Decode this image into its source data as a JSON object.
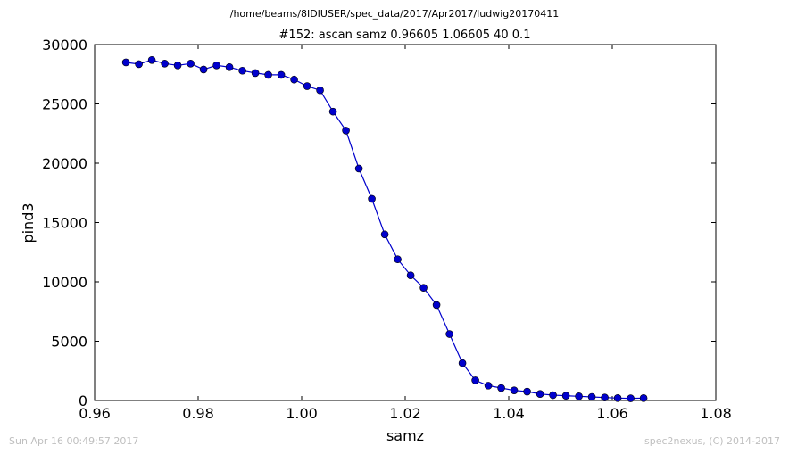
{
  "header": {
    "path": "/home/beams/8IDIUSER/spec_data/2017/Apr2017/ludwig20170411"
  },
  "footer": {
    "timestamp": "Sun Apr 16 00:49:57 2017",
    "credit": "spec2nexus, (C) 2014-2017"
  },
  "chart_data": {
    "type": "line",
    "title": "#152: ascan  samz 0.96605 1.06605  40 0.1",
    "xlabel": "samz",
    "ylabel": "pind3",
    "xlim": [
      0.96,
      1.08
    ],
    "ylim": [
      0,
      30000
    ],
    "xticks": [
      "0.96",
      "0.98",
      "1.00",
      "1.02",
      "1.04",
      "1.06",
      "1.08"
    ],
    "yticks": [
      "0",
      "5000",
      "10000",
      "15000",
      "20000",
      "25000",
      "30000"
    ],
    "grid": false,
    "marker": "circle",
    "color": "#0000cc",
    "series": [
      {
        "x": [
          0.96605,
          0.96855,
          0.97105,
          0.97355,
          0.97605,
          0.97855,
          0.98105,
          0.98355,
          0.98605,
          0.98855,
          0.99105,
          0.99355,
          0.99605,
          0.99855,
          1.00105,
          1.00355,
          1.00605,
          1.00855,
          1.01105,
          1.01355,
          1.01605,
          1.01855,
          1.02105,
          1.02355,
          1.02605,
          1.02855,
          1.03105,
          1.03355,
          1.03605,
          1.03855,
          1.04105,
          1.04355,
          1.04605,
          1.04855,
          1.05105,
          1.05355,
          1.05605,
          1.05855,
          1.06105,
          1.06355,
          1.06605
        ],
        "y": [
          28500,
          28350,
          28700,
          28400,
          28250,
          28400,
          27900,
          28250,
          28100,
          27800,
          27600,
          27450,
          27450,
          27050,
          26500,
          26150,
          24350,
          22750,
          19550,
          17000,
          14000,
          11900,
          10550,
          9500,
          8050,
          5600,
          3150,
          1700,
          1250,
          1050,
          850,
          750,
          550,
          450,
          400,
          350,
          300,
          250,
          200,
          180,
          200
        ]
      }
    ]
  }
}
